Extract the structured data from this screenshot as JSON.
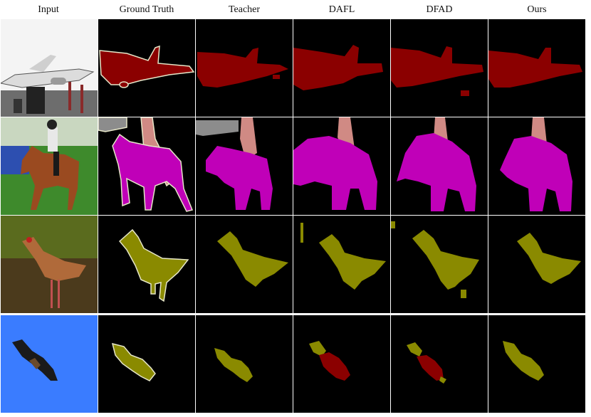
{
  "columns": [
    "Input",
    "Ground Truth",
    "Teacher",
    "DAFL",
    "DFAD",
    "Ours"
  ],
  "rows": [
    {
      "subject": "airplane",
      "class_color": "#8b0000"
    },
    {
      "subject": "horse-rider",
      "class_color": "#c000b8",
      "person_color": "#d08a84",
      "background_person_color": "#8c8c8c"
    },
    {
      "subject": "bird",
      "class_color": "#8a8a00"
    },
    {
      "subject": "bird",
      "class_color": "#8a8a00",
      "error_color": "#8b0000"
    }
  ],
  "colors": {
    "boundary": "#e6e6c8",
    "background": "#000000",
    "sky_blue": "#3a7cff",
    "grass_green": "#3e8a2c"
  }
}
